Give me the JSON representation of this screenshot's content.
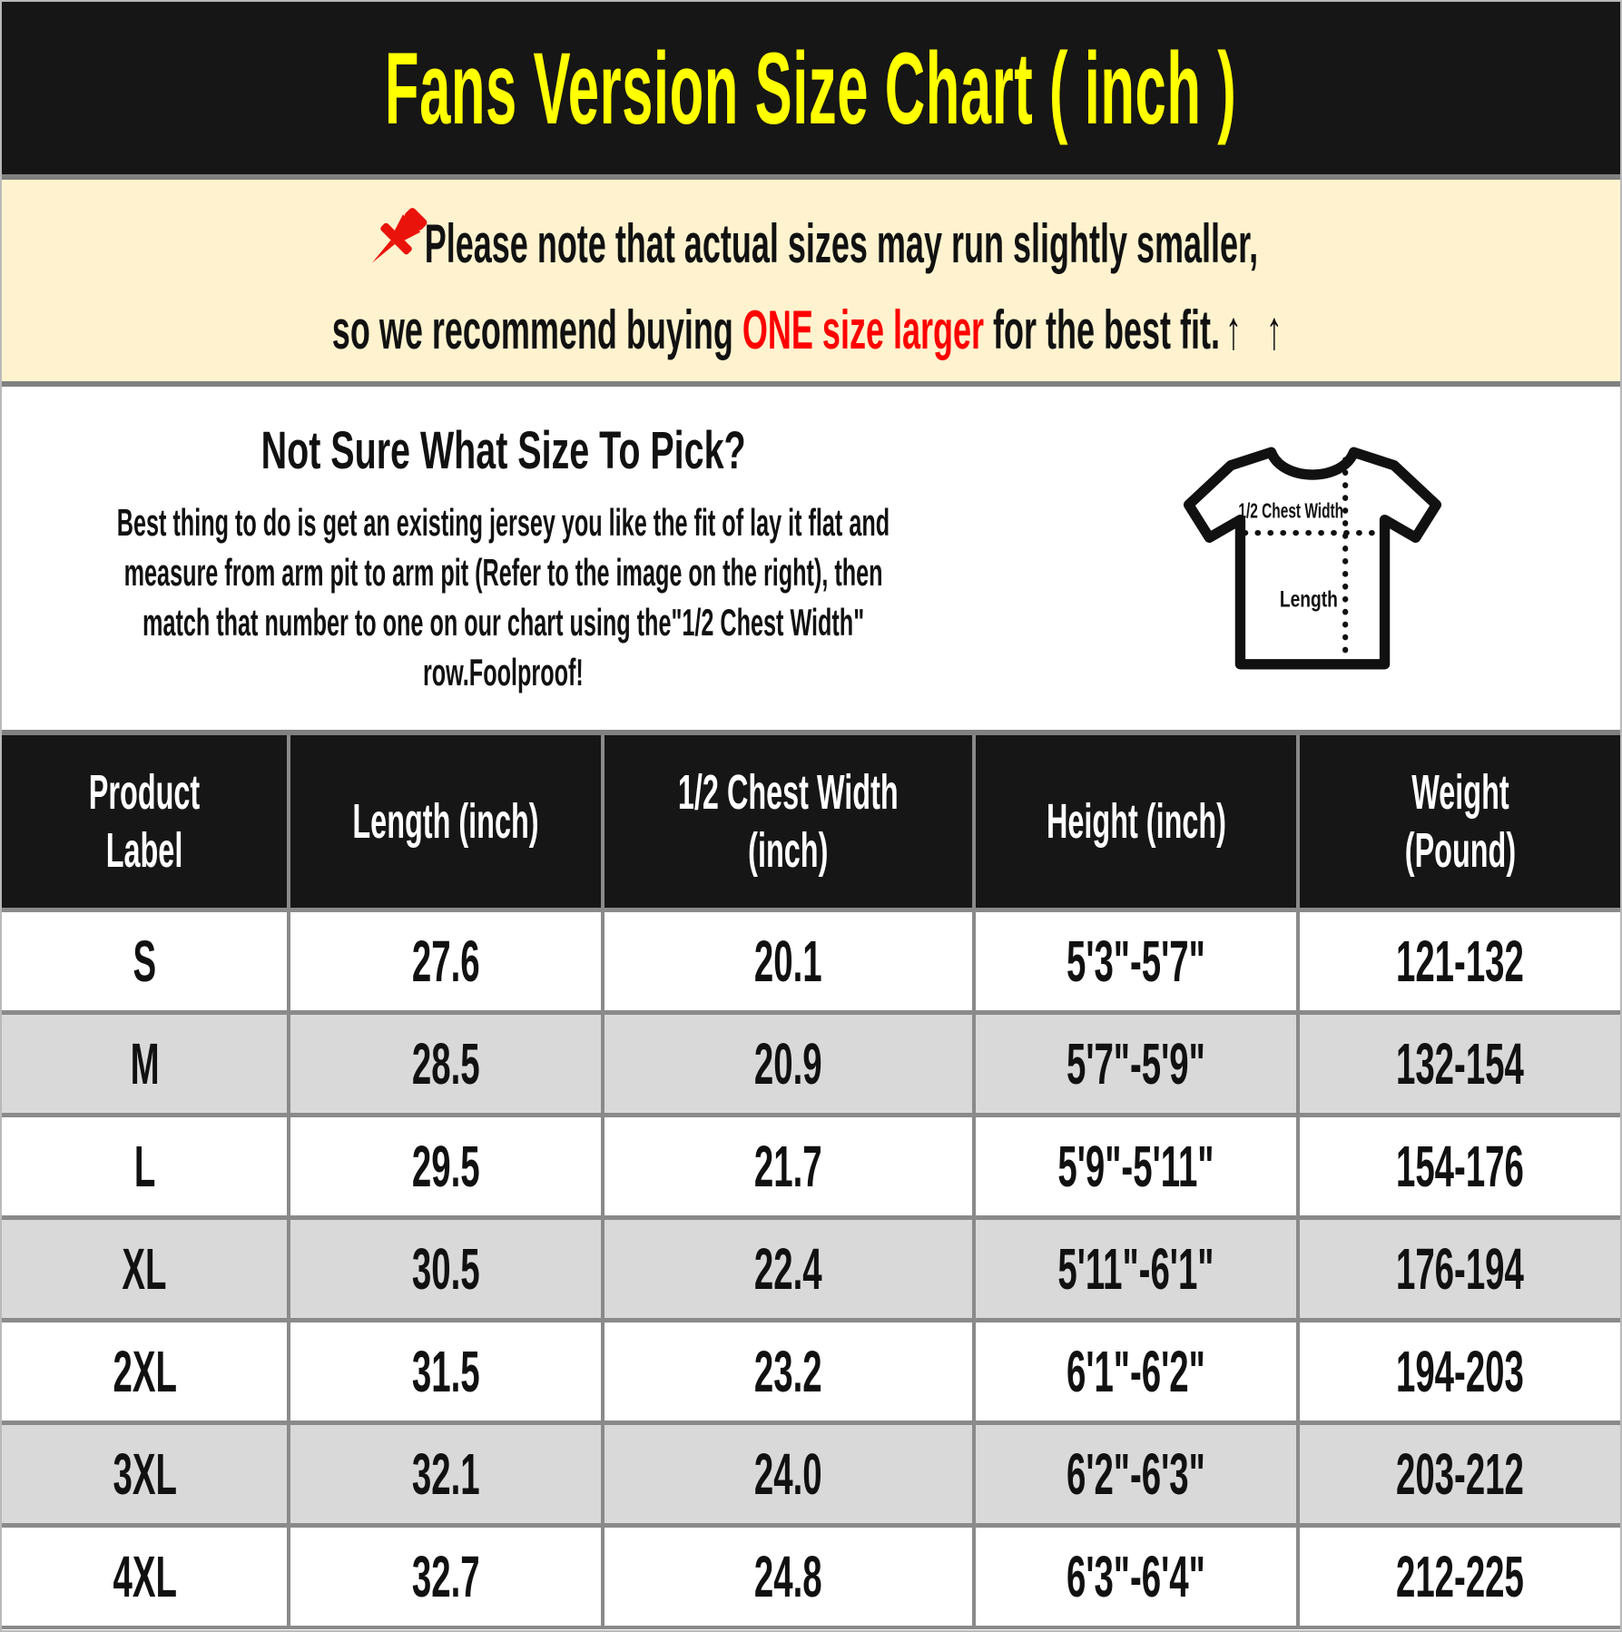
{
  "page_title": "Fans Version Size Chart ( inch )",
  "notice": {
    "pin_icon": "red-pushpin",
    "line1": "Please note that actual sizes may run slightly smaller,",
    "line2_prefix": "so we recommend buying ",
    "line2_highlight": "ONE size larger",
    "line2_suffix": " for the best fit.",
    "arrows": "↑ ↑",
    "background": "#FFF3CF",
    "highlight_color": "#FF0000"
  },
  "guide": {
    "heading": "Not Sure What Size To Pick?",
    "body_lines": [
      "Best thing to do is get an existing jersey you like the fit of lay it flat and",
      "measure from arm pit to arm pit (Refer to the image on the right), then",
      "match that number to one on our chart using the\"1/2 Chest Width\"",
      "row.Foolproof!"
    ],
    "diagram": {
      "chest_label": "1/2 Chest Width",
      "length_label": "Length"
    }
  },
  "size_table": {
    "columns": [
      {
        "key": "product-label",
        "lines": [
          "Product",
          "Label"
        ]
      },
      {
        "key": "length",
        "lines": [
          "Length (inch)"
        ]
      },
      {
        "key": "chest-width",
        "lines": [
          "1/2 Chest Width",
          "(inch)"
        ]
      },
      {
        "key": "height",
        "lines": [
          "Height (inch)"
        ]
      },
      {
        "key": "weight",
        "lines": [
          "Weight",
          "(Pound)"
        ]
      }
    ],
    "rows": [
      [
        "S",
        "27.6",
        "20.1",
        "5'3\"-5'7\"",
        "121-132"
      ],
      [
        "M",
        "28.5",
        "20.9",
        "5'7\"-5'9\"",
        "132-154"
      ],
      [
        "L",
        "29.5",
        "21.7",
        "5'9\"-5'11\"",
        "154-176"
      ],
      [
        "XL",
        "30.5",
        "22.4",
        "5'11\"-6'1\"",
        "176-194"
      ],
      [
        "2XL",
        "31.5",
        "23.2",
        "6'1\"-6'2\"",
        "194-203"
      ],
      [
        "3XL",
        "32.1",
        "24.0",
        "6'2\"-6'3\"",
        "203-212"
      ],
      [
        "4XL",
        "32.7",
        "24.8",
        "6'3\"-6'4\"",
        "212-225"
      ]
    ],
    "header_bg": "#161616",
    "header_text_color": "#FFFFFF",
    "stripe_color": "#D9D9D9",
    "grid_line_color": "#8A8A8A"
  },
  "colors": {
    "banner_bg": "#161616",
    "title_color": "#FFFF00"
  }
}
